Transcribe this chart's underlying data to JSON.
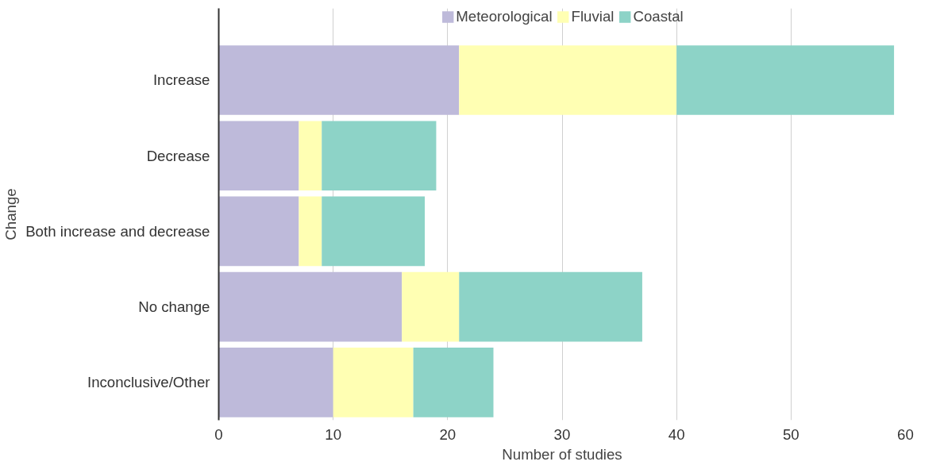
{
  "chart_data": {
    "type": "bar",
    "orientation": "horizontal",
    "stacked": true,
    "categories": [
      "Increase",
      "Decrease",
      "Both increase and decrease",
      "No change",
      "Inconclusive/Other"
    ],
    "series": [
      {
        "name": "Meteorological",
        "color": "#bebada",
        "values": [
          21,
          7,
          7,
          16,
          10
        ]
      },
      {
        "name": "Fluvial",
        "color": "#ffffb3",
        "values": [
          19,
          2,
          2,
          5,
          7
        ]
      },
      {
        "name": "Coastal",
        "color": "#8dd3c7",
        "values": [
          19,
          10,
          9,
          16,
          7
        ]
      }
    ],
    "xlabel": "Number of studies",
    "ylabel": "Change",
    "xlim": [
      0,
      60
    ],
    "xticks": [
      0,
      10,
      20,
      30,
      40,
      50,
      60
    ],
    "grid": "x",
    "legend": "top"
  }
}
